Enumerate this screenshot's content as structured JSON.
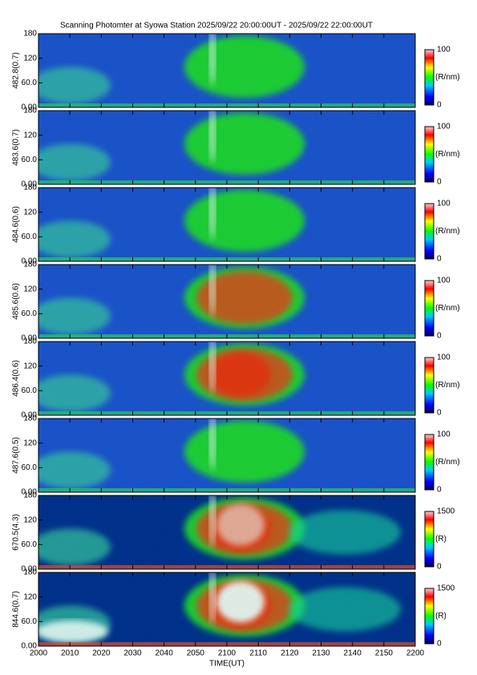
{
  "title": "Scanning Photomter at Syowa Station 2025/09/22 20:00:00UT - 2025/09/22 22:00:00UT",
  "xlabel": "TIME(UT)",
  "xlim": [
    0,
    120
  ],
  "xticks": [
    {
      "value": 0,
      "label": "2000"
    },
    {
      "value": 10,
      "label": "2010"
    },
    {
      "value": 20,
      "label": "2020"
    },
    {
      "value": 30,
      "label": "2030"
    },
    {
      "value": 40,
      "label": "2040"
    },
    {
      "value": 50,
      "label": "2050"
    },
    {
      "value": 60,
      "label": "2100"
    },
    {
      "value": 70,
      "label": "2110"
    },
    {
      "value": 80,
      "label": "2120"
    },
    {
      "value": 90,
      "label": "2130"
    },
    {
      "value": 100,
      "label": "2140"
    },
    {
      "value": 110,
      "label": "2150"
    },
    {
      "value": 120,
      "label": "2200"
    }
  ],
  "chart_data": [
    {
      "type": "heatmap",
      "ylabel": "482.8(0.7)",
      "ylim": [
        0,
        180
      ],
      "yticks": [
        {
          "value": 0,
          "label": "0.00"
        },
        {
          "value": 60,
          "label": "60.0"
        },
        120,
        180
      ],
      "clim": [
        0,
        100
      ],
      "cticks": [
        0,
        100
      ],
      "clabel": "(R/nm)"
    },
    {
      "type": "heatmap",
      "ylabel": "483.6(0.7)",
      "ylim": [
        0,
        180
      ],
      "yticks": [
        {
          "value": 0,
          "label": "0.00"
        },
        {
          "value": 60,
          "label": "60.0"
        },
        120,
        180
      ],
      "clim": [
        0,
        100
      ],
      "cticks": [
        0,
        100
      ],
      "clabel": "(R/nm)"
    },
    {
      "type": "heatmap",
      "ylabel": "484.6(0.6)",
      "ylim": [
        0,
        180
      ],
      "yticks": [
        {
          "value": 0,
          "label": "0.00"
        },
        {
          "value": 60,
          "label": "60.0"
        },
        120,
        180
      ],
      "clim": [
        0,
        100
      ],
      "cticks": [
        0,
        100
      ],
      "clabel": "(R/nm)"
    },
    {
      "type": "heatmap",
      "ylabel": "485.6(0.6)",
      "ylim": [
        0,
        180
      ],
      "yticks": [
        {
          "value": 0,
          "label": "0.00"
        },
        {
          "value": 60,
          "label": "60.0"
        },
        120,
        180
      ],
      "clim": [
        0,
        100
      ],
      "cticks": [
        0,
        100
      ],
      "clabel": "(R/nm)"
    },
    {
      "type": "heatmap",
      "ylabel": "486.4(0.6)",
      "ylim": [
        0,
        180
      ],
      "yticks": [
        {
          "value": 0,
          "label": "0.00"
        },
        {
          "value": 60,
          "label": "60.0"
        },
        120,
        180
      ],
      "clim": [
        0,
        100
      ],
      "cticks": [
        0,
        100
      ],
      "clabel": "(R/nm)"
    },
    {
      "type": "heatmap",
      "ylabel": "487.6(0.5)",
      "ylim": [
        0,
        180
      ],
      "yticks": [
        {
          "value": 0,
          "label": "0.00"
        },
        {
          "value": 60,
          "label": "60.0"
        },
        120,
        180
      ],
      "clim": [
        0,
        100
      ],
      "cticks": [
        0,
        100
      ],
      "clabel": "(R/nm)"
    },
    {
      "type": "heatmap",
      "ylabel": "670.5(4.3)",
      "ylim": [
        0,
        180
      ],
      "yticks": [
        {
          "value": 0,
          "label": "0.00"
        },
        {
          "value": 60,
          "label": "60.0"
        },
        120,
        180
      ],
      "clim": [
        0,
        1500
      ],
      "cticks": [
        0,
        1500
      ],
      "clabel": "(R)"
    },
    {
      "type": "heatmap",
      "ylabel": "844.6(0.7)",
      "ylim": [
        0,
        180
      ],
      "yticks": [
        {
          "value": 0,
          "label": "0.00"
        },
        {
          "value": 60,
          "label": "60.0"
        },
        120,
        180
      ],
      "clim": [
        0,
        1500
      ],
      "cticks": [
        0,
        1500
      ],
      "clabel": "(R)"
    }
  ]
}
